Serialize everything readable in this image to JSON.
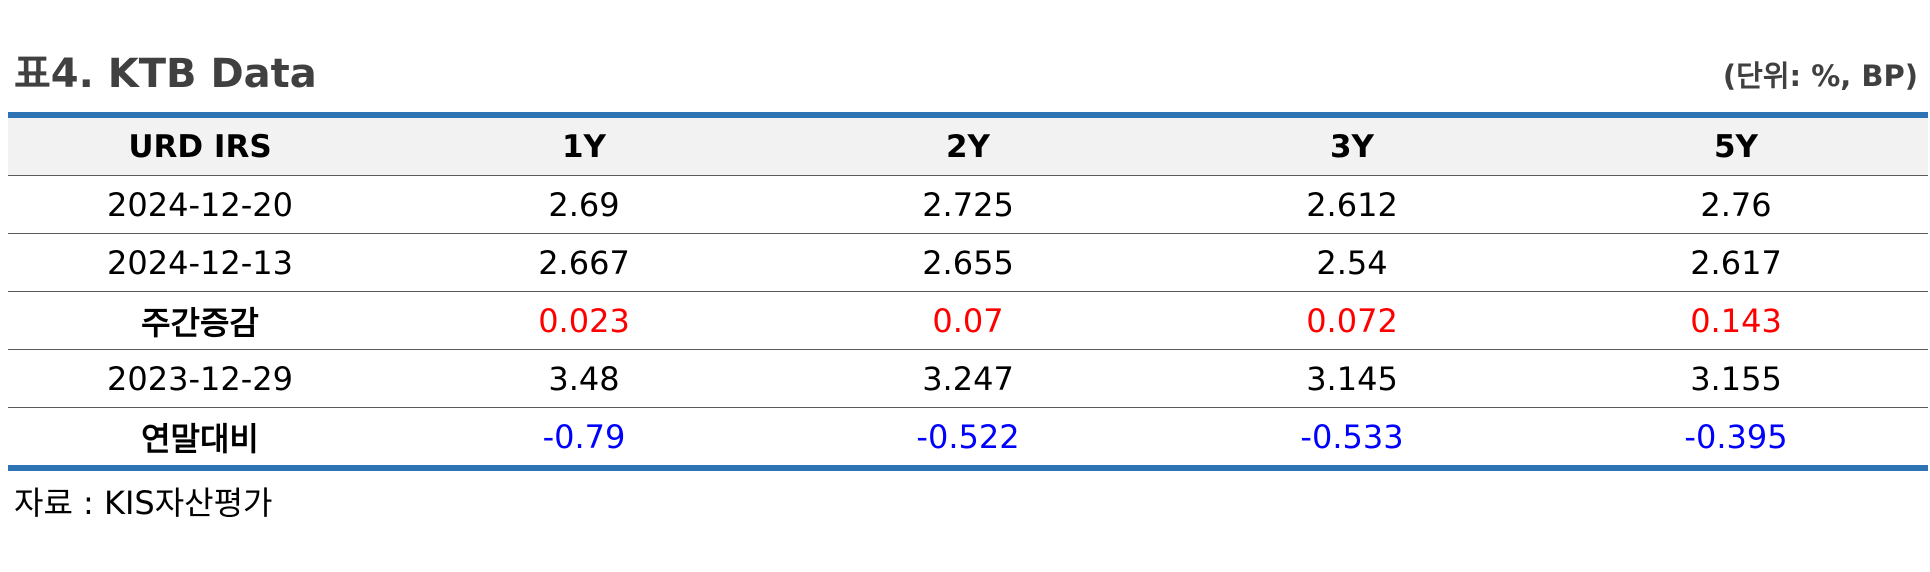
{
  "title": "표4. KTB Data",
  "unit": "(단위: %, BP)",
  "table": {
    "headers": [
      "URD IRS",
      "1Y",
      "2Y",
      "3Y",
      "5Y"
    ],
    "rows": [
      {
        "label": "2024-12-20",
        "values": [
          "2.69",
          "2.725",
          "2.612",
          "2.76"
        ]
      },
      {
        "label": "2024-12-13",
        "values": [
          "2.667",
          "2.655",
          "2.54",
          "2.617"
        ]
      },
      {
        "label": "주간증감",
        "values": [
          "0.023",
          "0.07",
          "0.072",
          "0.143"
        ]
      },
      {
        "label": "2023-12-29",
        "values": [
          "3.48",
          "3.247",
          "3.145",
          "3.155"
        ]
      },
      {
        "label": "연말대비",
        "values": [
          "-0.79",
          "-0.522",
          "-0.533",
          "-0.395"
        ]
      }
    ]
  },
  "colors": {
    "accent_border": "#2e74b5",
    "positive_change": "#ff0000",
    "negative_change": "#0000ff",
    "header_background": "#f2f2f2"
  },
  "source": "자료 : KIS자산평가"
}
